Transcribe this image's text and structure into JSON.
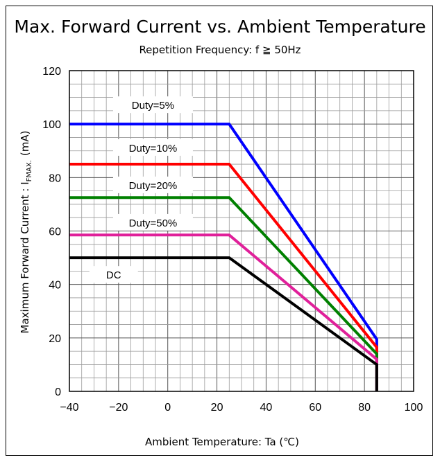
{
  "chart_data": {
    "type": "line",
    "title": "Max. Forward Current vs. Ambient Temperature",
    "subtitle": "Repetition  Frequency: f ≧ 50Hz",
    "xlabel": "Ambient Temperature: Ta (℃)",
    "ylabel_main": "Maximum Forward Current : I",
    "ylabel_sub": "FMAX.",
    "ylabel_unit": "(mA)",
    "xlim": [
      -40,
      100
    ],
    "ylim": [
      0,
      120
    ],
    "x_ticks": [
      "−40",
      "−20",
      "0",
      "20",
      "40",
      "60",
      "80",
      "100"
    ],
    "y_ticks": [
      "0",
      "20",
      "40",
      "60",
      "80",
      "100",
      "120"
    ],
    "grid": true,
    "series": [
      {
        "name": "Duty=5%",
        "color": "#0000ff",
        "points": [
          [
            -40,
            100
          ],
          [
            25,
            100
          ],
          [
            85,
            19.5
          ],
          [
            85,
            0
          ]
        ]
      },
      {
        "name": "Duty=10%",
        "color": "#ff0000",
        "points": [
          [
            -40,
            85
          ],
          [
            25,
            85
          ],
          [
            85,
            16.5
          ],
          [
            85,
            0
          ]
        ]
      },
      {
        "name": "Duty=20%",
        "color": "#008000",
        "points": [
          [
            -40,
            72.5
          ],
          [
            25,
            72.5
          ],
          [
            85,
            14
          ],
          [
            85,
            0
          ]
        ]
      },
      {
        "name": "Duty=50%",
        "color": "#e0209a",
        "points": [
          [
            -40,
            58.5
          ],
          [
            25,
            58.5
          ],
          [
            85,
            12
          ],
          [
            85,
            0
          ]
        ]
      },
      {
        "name": "DC",
        "color": "#000000",
        "points": [
          [
            -40,
            50
          ],
          [
            25,
            50
          ],
          [
            85,
            10
          ],
          [
            85,
            0
          ]
        ]
      }
    ],
    "label_positions": [
      {
        "text": "Duty=5%",
        "x": -6,
        "y": 107
      },
      {
        "text": "Duty=10%",
        "x": -6,
        "y": 91
      },
      {
        "text": "Duty=20%",
        "x": -6,
        "y": 77
      },
      {
        "text": "Duty=50%",
        "x": -6,
        "y": 63
      },
      {
        "text": "DC",
        "x": -22,
        "y": 43.5
      }
    ]
  }
}
